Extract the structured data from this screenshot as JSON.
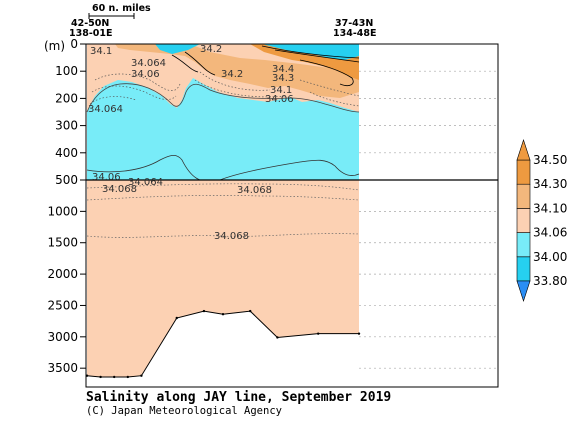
{
  "title": "Salinity along JAY line, September 2019",
  "credit": "(C) Japan Meteorological Agency",
  "scale_bar_label": "60 n. miles",
  "stations": {
    "left": {
      "lat": "42-50N",
      "lon": "138-01E"
    },
    "right": {
      "lat": "37-43N",
      "lon": "134-48E"
    }
  },
  "colors": {
    "fresh": "#26d0f0",
    "low": "#78ecf8",
    "mid": "#fcd1b3",
    "high": "#f3b77c",
    "top": "#ee9a40",
    "section_line": "#000000"
  },
  "chart_data": {
    "type": "heatmap",
    "title": "Salinity along JAY line, September 2019",
    "ylabel": "(m)",
    "ylim": [
      0,
      3800
    ],
    "upper_panel_depth_range": [
      0,
      500
    ],
    "lower_panel_depth_range": [
      500,
      3800
    ],
    "y_ticks_upper": [
      0,
      100,
      200,
      300,
      400,
      500
    ],
    "y_ticks_lower": [
      1000,
      1500,
      2000,
      2500,
      3000,
      3500
    ],
    "colorbar": {
      "levels": [
        33.8,
        34.0,
        34.06,
        34.1,
        34.3,
        34.5
      ],
      "labels": [
        "33.80",
        "34.00",
        "34.06",
        "34.10",
        "34.30",
        "34.50"
      ],
      "colors": [
        "#26d0f0",
        "#78ecf8",
        "#fcd1b3",
        "#f3b77c",
        "#ee9a40"
      ],
      "extend": "both"
    },
    "contour_labels": [
      {
        "text": "34.1",
        "depth": 30
      },
      {
        "text": "34.064",
        "depth": 80
      },
      {
        "text": "34.06",
        "depth": 110
      },
      {
        "text": "34.2",
        "depth": 30
      },
      {
        "text": "34.2",
        "depth": 110
      },
      {
        "text": "34.4",
        "depth": 80
      },
      {
        "text": "34.3",
        "depth": 110
      },
      {
        "text": "34.1",
        "depth": 150
      },
      {
        "text": "34.06",
        "depth": 180
      },
      {
        "text": "34.064",
        "depth": 240
      },
      {
        "text": "34.06",
        "depth": 475
      },
      {
        "text": "34.064",
        "depth": 500
      },
      {
        "text": "34.068",
        "depth": 550
      },
      {
        "text": "34.068",
        "depth": 850
      },
      {
        "text": "34.068",
        "depth": 1400
      }
    ],
    "bottom_profile": {
      "x_fraction": [
        0.0,
        0.05,
        0.1,
        0.15,
        0.2,
        0.33,
        0.43,
        0.5,
        0.6,
        0.7,
        0.85,
        1.0
      ],
      "depth": [
        3620,
        3640,
        3640,
        3640,
        3620,
        2700,
        2590,
        2640,
        2590,
        3010,
        2950,
        2950
      ]
    }
  }
}
